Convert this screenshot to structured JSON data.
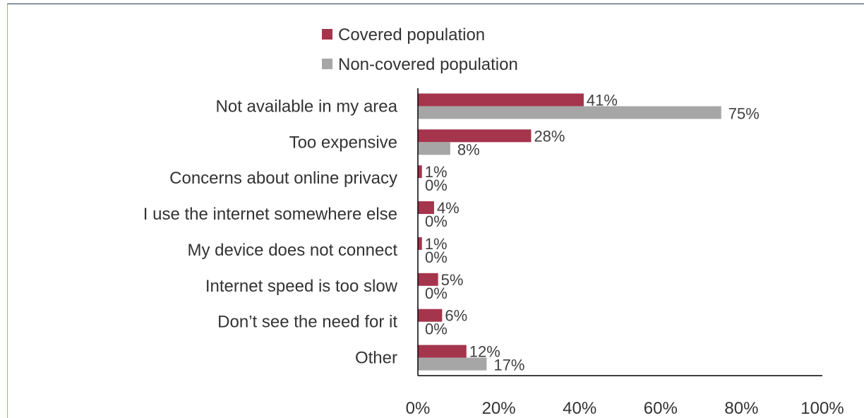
{
  "chart_data": {
    "type": "bar",
    "orientation": "horizontal",
    "categories": [
      "Not available in my area",
      "Too expensive",
      "Concerns about online privacy",
      "I use the internet somewhere else",
      "My device does not connect",
      "Internet speed is too slow",
      "Don’t see the need for it",
      "Other"
    ],
    "series": [
      {
        "name": "Covered population",
        "color": "#a5354c",
        "values": [
          41,
          28,
          1,
          4,
          1,
          5,
          6,
          12
        ],
        "labels": [
          "41%",
          "28%",
          "1%",
          "4%",
          "1%",
          "5%",
          "6%",
          "12%"
        ]
      },
      {
        "name": "Non-covered population",
        "color": "#a6a6a6",
        "values": [
          75,
          8,
          0,
          0,
          0,
          0,
          0,
          17
        ],
        "labels": [
          "75%",
          "8%",
          "0%",
          "0%",
          "0%",
          "0%",
          "0%",
          "17%"
        ]
      }
    ],
    "xlim": [
      0,
      100
    ],
    "xticks": [
      "0%",
      "20%",
      "40%",
      "60%",
      "80%",
      "100%"
    ],
    "legend_position": "top",
    "grid": false
  }
}
